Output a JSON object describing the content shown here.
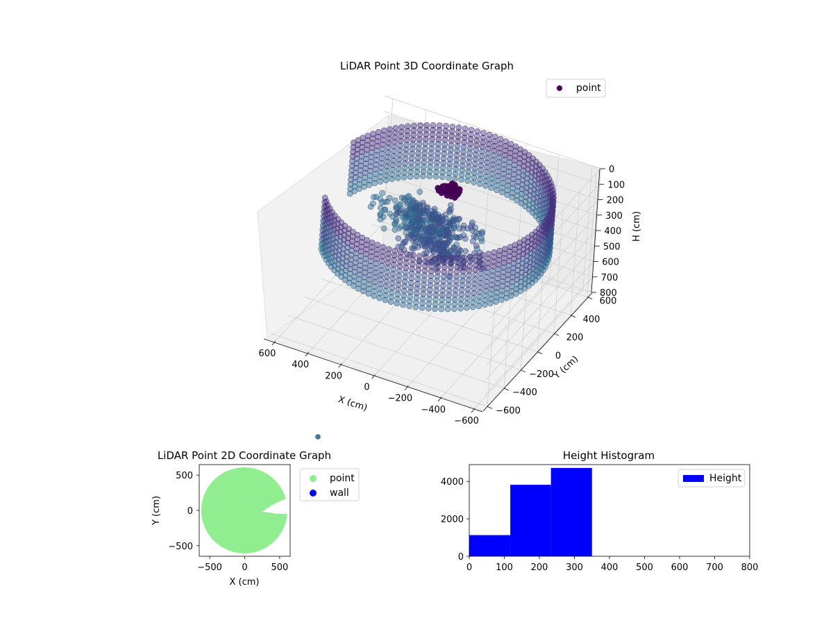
{
  "chart_data": [
    {
      "type": "scatter",
      "title": "LiDAR Point 3D Coordinate Graph",
      "xlabel": "X (cm)",
      "ylabel": "Y (cm)",
      "zlabel": "H (cm)",
      "xlim": [
        -650,
        650
      ],
      "ylim": [
        -650,
        650
      ],
      "zlim": [
        800,
        0
      ],
      "x_ticks": [
        -600,
        -400,
        -200,
        0,
        200,
        400,
        600
      ],
      "y_ticks": [
        -600,
        -400,
        -200,
        0,
        200,
        400,
        600
      ],
      "z_ticks": [
        0,
        100,
        200,
        300,
        400,
        500,
        600,
        700,
        800
      ],
      "grid": true,
      "legend": {
        "position": "top-right",
        "entries": [
          {
            "label": "point",
            "color": "#440154"
          }
        ]
      },
      "colors": {
        "dark": "#440154",
        "mid": "#3b528b",
        "light": "#31688e"
      },
      "series": [
        {
          "name": "point",
          "shape": "ring-wall",
          "radius": 620,
          "gap_deg": [
            -35,
            15
          ],
          "z_range": [
            0,
            350
          ],
          "inner_clusters": [
            {
              "x": -150,
              "y": -250,
              "z": 180
            },
            {
              "x": 0,
              "y": 50,
              "z": 250
            },
            {
              "x": 200,
              "y": 150,
              "z": 320
            }
          ]
        }
      ]
    },
    {
      "type": "scatter",
      "title": "LiDAR Point 2D Coordinate Graph",
      "xlabel": "X (cm)",
      "ylabel": "Y (cm)",
      "xlim": [
        -650,
        650
      ],
      "ylim": [
        -650,
        650
      ],
      "x_ticks": [
        -500,
        0,
        500
      ],
      "y_ticks": [
        -500,
        0,
        500
      ],
      "legend": {
        "position": "right",
        "entries": [
          {
            "label": "point",
            "color": "#90ee90"
          },
          {
            "label": "wall",
            "color": "#0000ff"
          }
        ]
      },
      "series": [
        {
          "name": "point",
          "color": "#90ee90",
          "shape": "disk",
          "radius": 620
        },
        {
          "name": "wall",
          "color": "#0000ff",
          "values": []
        }
      ]
    },
    {
      "type": "bar",
      "title": "Height Histogram",
      "xlim": [
        0,
        800
      ],
      "ylim": [
        0,
        4900
      ],
      "x_ticks": [
        0,
        100,
        200,
        300,
        400,
        500,
        600,
        700,
        800
      ],
      "y_ticks": [
        0,
        2000,
        4000
      ],
      "legend": {
        "position": "top-right",
        "entries": [
          {
            "label": "Height",
            "color": "#0000ff"
          }
        ]
      },
      "bins": [
        {
          "x0": 0,
          "x1": 117,
          "count": 1130
        },
        {
          "x0": 117,
          "x1": 233,
          "count": 3820
        },
        {
          "x0": 233,
          "x1": 350,
          "count": 4720
        }
      ],
      "color": "#0000ff"
    }
  ]
}
